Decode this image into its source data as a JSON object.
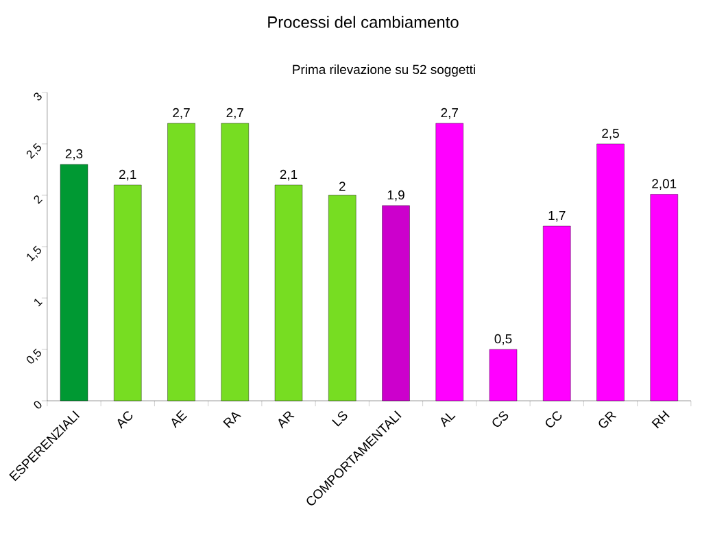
{
  "chart_data": {
    "type": "bar",
    "title": "Processi del cambiamento",
    "subtitle": "Prima rilevazione su 52 soggetti",
    "categories": [
      "ESPERENZIALI",
      "AC",
      "AE",
      "RA",
      "AR",
      "LS",
      "COMPORTAMENTALI",
      "AL",
      "CS",
      "CC",
      "GR",
      "RH"
    ],
    "values": [
      2.3,
      2.1,
      2.7,
      2.7,
      2.1,
      2.0,
      1.9,
      2.7,
      0.5,
      1.7,
      2.5,
      2.01
    ],
    "value_labels": [
      "2,3",
      "2,1",
      "2,7",
      "2,7",
      "2,1",
      "2",
      "1,9",
      "2,7",
      "0,5",
      "1,7",
      "2,5",
      "2,01"
    ],
    "colors": [
      "#009933",
      "#77dd22",
      "#77dd22",
      "#77dd22",
      "#77dd22",
      "#77dd22",
      "#cc00cc",
      "#ff00ff",
      "#ff00ff",
      "#ff00ff",
      "#ff00ff",
      "#ff00ff"
    ],
    "ylim": [
      0,
      3
    ],
    "yticks": [
      {
        "value": 0,
        "label": "0"
      },
      {
        "value": 0.5,
        "label": "0,5"
      },
      {
        "value": 1,
        "label": "1"
      },
      {
        "value": 1.5,
        "label": "1,5"
      },
      {
        "value": 2,
        "label": "2"
      },
      {
        "value": 2.5,
        "label": "2,5"
      },
      {
        "value": 3,
        "label": "3"
      }
    ]
  }
}
